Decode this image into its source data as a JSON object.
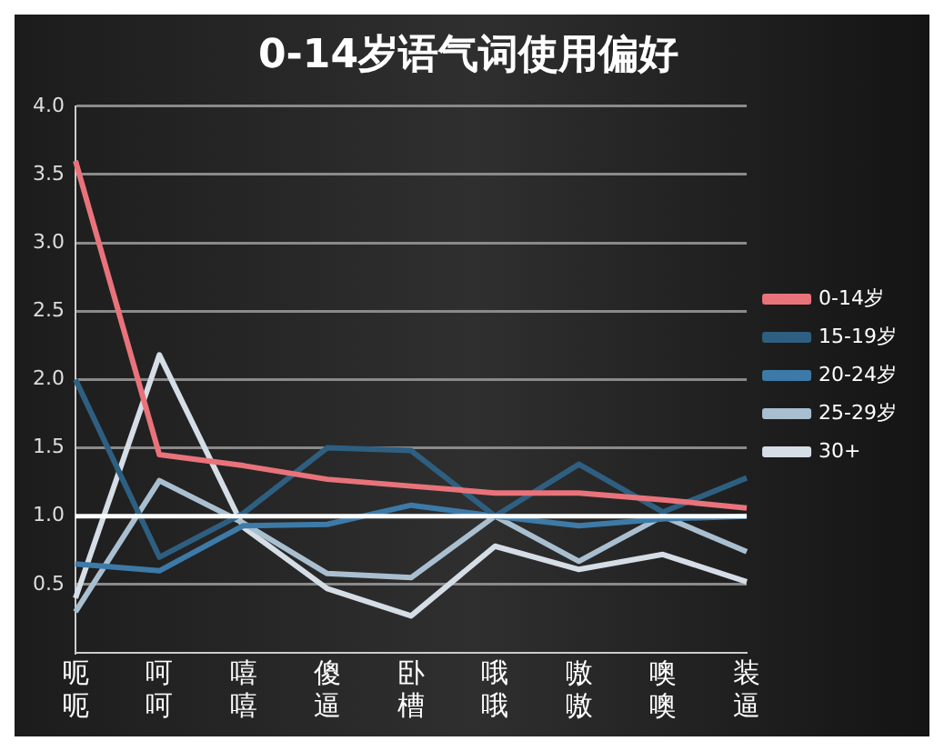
{
  "chart_data": {
    "type": "line",
    "title": "0-14岁语气词使用偏好",
    "categories": [
      "呃呃",
      "呵呵",
      "嘻嘻",
      "傻逼",
      "卧槽",
      "哦哦",
      "嗷嗷",
      "噢噢",
      "装逼"
    ],
    "series": [
      {
        "name": "0-14岁",
        "color": "#e8737a",
        "values": [
          3.6,
          1.45,
          1.37,
          1.27,
          1.22,
          1.17,
          1.17,
          1.12,
          1.06
        ]
      },
      {
        "name": "15-19岁",
        "color": "#2e5f80",
        "values": [
          2.0,
          0.7,
          1.02,
          1.5,
          1.48,
          1.0,
          1.38,
          1.03,
          1.28
        ]
      },
      {
        "name": "20-24岁",
        "color": "#3d7aa8",
        "values": [
          0.65,
          0.6,
          0.93,
          0.94,
          1.08,
          1.0,
          0.93,
          0.98,
          1.0
        ]
      },
      {
        "name": "25-29岁",
        "color": "#a9bfd0",
        "values": [
          0.3,
          1.26,
          0.95,
          0.58,
          0.55,
          1.0,
          0.67,
          1.0,
          0.74
        ]
      },
      {
        "name": "30+",
        "color": "#d5dde6",
        "values": [
          0.4,
          2.18,
          0.92,
          0.47,
          0.27,
          0.78,
          0.61,
          0.72,
          0.52
        ]
      }
    ],
    "ylim": [
      0,
      4
    ],
    "yticks": [
      0.5,
      {
        "value": 1,
        "label": "1.0"
      },
      1.5,
      {
        "value": 2,
        "label": "2.0"
      },
      2.5,
      {
        "value": 3,
        "label": "3.0"
      },
      3.5,
      {
        "value": 4,
        "label": "4.0"
      }
    ],
    "ref_lines": [
      {
        "axis": "y",
        "value": 1.0,
        "color": "#ffffff"
      }
    ],
    "grid": "y",
    "legend": "right",
    "marker": "none",
    "line_style": "solid"
  }
}
